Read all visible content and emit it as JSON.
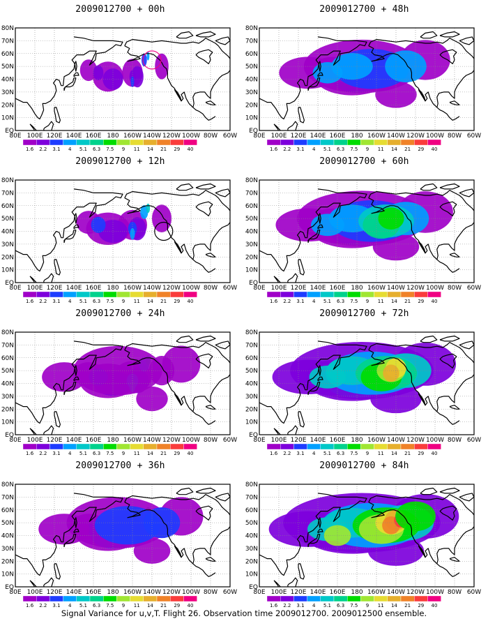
{
  "caption": "Signal Variance for u,v,T. Flight 26. Observation time 2009012700. 2009012500 ensemble.",
  "lat_labels": [
    "80N",
    "70N",
    "60N",
    "50N",
    "40N",
    "30N",
    "20N",
    "10N",
    "EQ"
  ],
  "lon_labels": [
    "80E",
    "100E",
    "120E",
    "140E",
    "160E",
    "180",
    "160W",
    "140W",
    "120W",
    "100W",
    "80W",
    "60W"
  ],
  "colorbar": {
    "levels": [
      "1.6",
      "2.2",
      "3.1",
      "4",
      "5.1",
      "6.3",
      "7.5",
      "9",
      "11",
      "14",
      "21",
      "29",
      "40"
    ],
    "colors": [
      "#a000c8",
      "#7d00dc",
      "#1e3cff",
      "#00a0ff",
      "#00c8c8",
      "#00d28c",
      "#00dc00",
      "#a0e632",
      "#e6dc32",
      "#e6af2d",
      "#f08228",
      "#fa3c3c",
      "#f00082"
    ]
  },
  "panels": [
    {
      "title": "2009012700 + 00h",
      "intensity": 0.35,
      "circle": {
        "lon": -140,
        "lat": 55,
        "color": "#f00082"
      }
    },
    {
      "title": "2009012700 + 12h",
      "intensity": 0.5,
      "circle": {
        "lon": -128,
        "lat": 40,
        "color": "#000000"
      }
    },
    {
      "title": "2009012700 + 24h",
      "intensity": 0.65
    },
    {
      "title": "2009012700 + 36h",
      "intensity": 0.75
    },
    {
      "title": "2009012700 + 48h",
      "intensity": 0.85
    },
    {
      "title": "2009012700 + 60h",
      "intensity": 0.95
    },
    {
      "title": "2009012700 + 72h",
      "intensity": 1.05
    },
    {
      "title": "2009012700 + 84h",
      "intensity": 1.15
    }
  ]
}
